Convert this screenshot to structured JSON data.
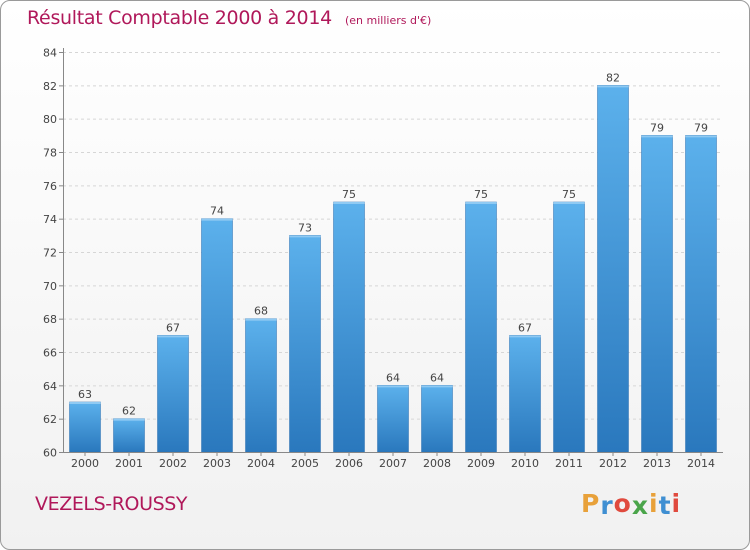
{
  "chart_data": {
    "type": "bar",
    "title": "Résultat Comptable 2000 à 2014",
    "subtitle": "(en milliers d'€)",
    "categories": [
      "2000",
      "2001",
      "2002",
      "2003",
      "2004",
      "2005",
      "2006",
      "2007",
      "2008",
      "2009",
      "2010",
      "2011",
      "2012",
      "2013",
      "2014"
    ],
    "values": [
      63,
      62,
      67,
      74,
      68,
      73,
      75,
      64,
      64,
      75,
      67,
      75,
      82,
      79,
      79
    ],
    "ylim": [
      60,
      84
    ],
    "yticks": [
      60,
      62,
      64,
      66,
      68,
      70,
      72,
      74,
      76,
      78,
      80,
      82,
      84
    ],
    "xlabel": "",
    "ylabel": "",
    "grid": true,
    "bar_color": "#3a8fd6"
  },
  "footer": {
    "commune": "VEZELS-ROUSSY",
    "brand": "Proxiti",
    "brand_letters": [
      "P",
      "r",
      "o",
      "x",
      "i",
      "t",
      "i"
    ],
    "brand_colors": [
      "#e8a13a",
      "#3f8fd2",
      "#e04a3e",
      "#4aa54a",
      "#e8a13a",
      "#3f8fd2",
      "#e04a3e"
    ]
  }
}
